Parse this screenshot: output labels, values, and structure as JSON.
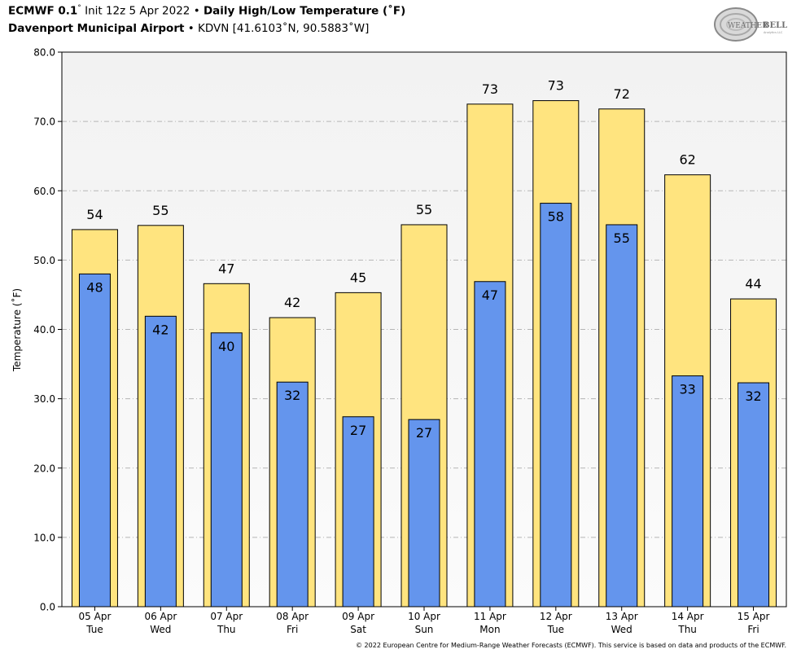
{
  "header": {
    "line1_model": "ECMWF 0.1",
    "line1_deg": "°",
    "line1_init": " Init 12z 5 Apr 2022 • ",
    "line1_product": "Daily High/Low Temperature (˚F)",
    "line2_station": "Davenport Municipal Airport",
    "line2_rest": " • KDVN [41.6103˚N, 90.5883˚W]"
  },
  "logo": {
    "text_left": "WEATHER",
    "text_right": "BELL",
    "sub": "Analytics LLC"
  },
  "footer": "© 2022 European Centre for Medium-Range Weather Forecasts (ECMWF). This service is based on data and products of the ECMWF.",
  "colors": {
    "high": "#FFE47F",
    "low": "#6495ED",
    "plot_bg_top": "#f2f2f2",
    "plot_bg_bottom": "#fbfbfb"
  },
  "chart_data": {
    "type": "bar",
    "ylabel": "Temperature (˚F)",
    "ylim": [
      0,
      80
    ],
    "yticks": [
      "0.0",
      "10.0",
      "20.0",
      "30.0",
      "40.0",
      "50.0",
      "60.0",
      "70.0",
      "80.0"
    ],
    "grid": true,
    "categories": [
      [
        "05 Apr",
        "Tue"
      ],
      [
        "06 Apr",
        "Wed"
      ],
      [
        "07 Apr",
        "Thu"
      ],
      [
        "08 Apr",
        "Fri"
      ],
      [
        "09 Apr",
        "Sat"
      ],
      [
        "10 Apr",
        "Sun"
      ],
      [
        "11 Apr",
        "Mon"
      ],
      [
        "12 Apr",
        "Tue"
      ],
      [
        "13 Apr",
        "Wed"
      ],
      [
        "14 Apr",
        "Thu"
      ],
      [
        "15 Apr",
        "Fri"
      ]
    ],
    "series": [
      {
        "values": [
          54.4,
          55.0,
          46.6,
          41.7,
          45.3,
          55.1,
          72.5,
          73.0,
          71.8,
          62.3,
          44.4
        ],
        "labels": [
          "54",
          "55",
          "47",
          "42",
          "45",
          "55",
          "73",
          "73",
          "72",
          "62",
          "44"
        ]
      },
      {
        "values": [
          48.0,
          41.9,
          39.5,
          32.4,
          27.4,
          27.0,
          46.9,
          58.2,
          55.1,
          33.3,
          32.3
        ],
        "labels": [
          "48",
          "42",
          "40",
          "32",
          "27",
          "27",
          "47",
          "58",
          "55",
          "33",
          "32"
        ]
      }
    ]
  }
}
